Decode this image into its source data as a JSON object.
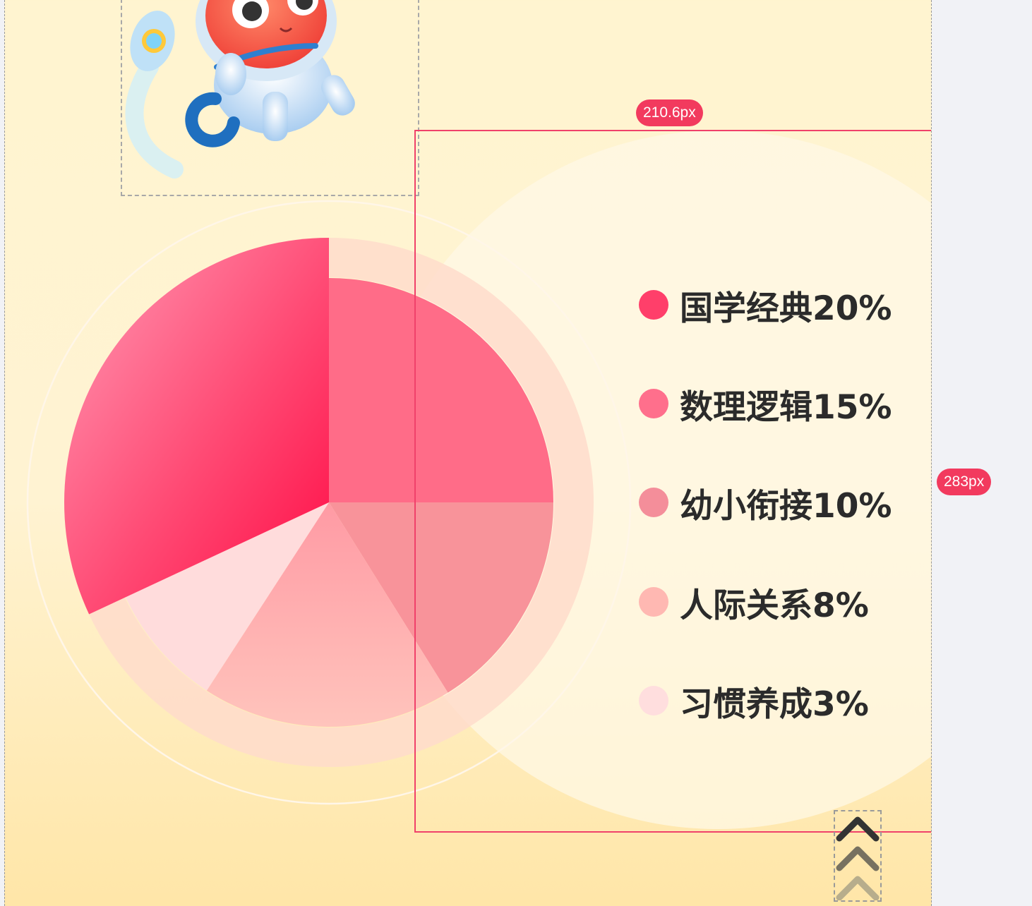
{
  "chart_data": {
    "type": "pie",
    "title": "",
    "legend_position": "right",
    "slices": [
      {
        "label": "国学经典",
        "value": 20,
        "legend": "国学经典20%",
        "color": "#ff3f6a"
      },
      {
        "label": "数理逻辑",
        "value": 15,
        "legend": "数理逻辑15%",
        "color": "#ff6f8c"
      },
      {
        "label": "幼小衔接",
        "value": 10,
        "legend": "幼小衔接10%",
        "color": "#f48e9a"
      },
      {
        "label": "人际关系",
        "value": 8,
        "legend": "人际关系8%",
        "color": "#ffb8b2"
      },
      {
        "label": "习惯养成",
        "value": 3,
        "legend": "习惯养成3%",
        "color": "#ffdede"
      }
    ]
  },
  "annotations": {
    "width_badge": "210.6px",
    "height_badge": "283px"
  },
  "icons": {
    "mascot": "astronaut-mascot-icon",
    "scroll_up": "chevrons-up-icon"
  }
}
